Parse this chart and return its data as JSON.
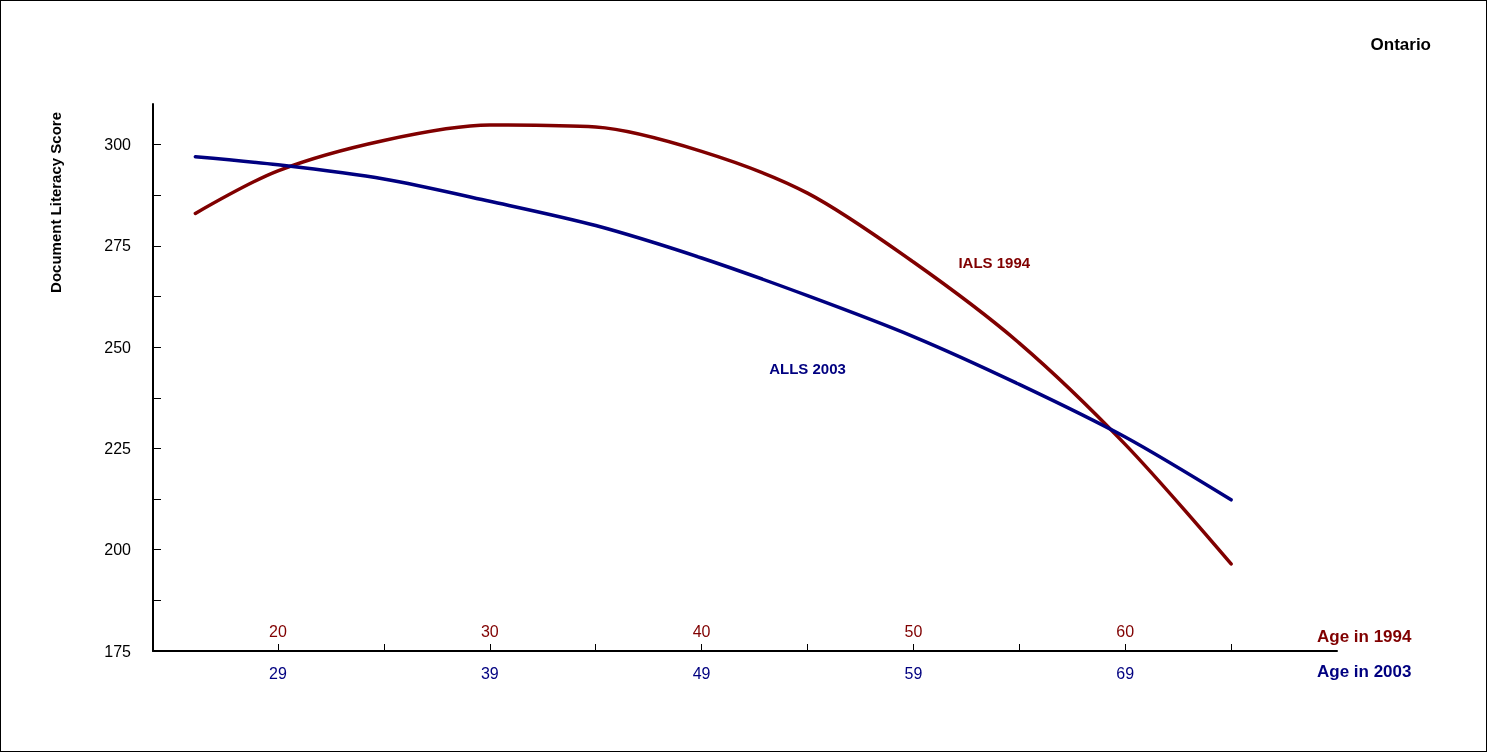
{
  "chart_data": {
    "type": "line",
    "title": "Ontario",
    "ylabel": "Document Literacy Score",
    "xlabel": "Age in 1994",
    "x2label": "Age in 2003",
    "xlim": [
      14.1,
      70
    ],
    "xticks": [
      20,
      {
        "value": 25,
        "label": null
      },
      30,
      {
        "value": 35,
        "label": null
      },
      40,
      {
        "value": 45,
        "label": null
      },
      50,
      {
        "value": 55,
        "label": null
      },
      60,
      {
        "value": 65,
        "label": null
      }
    ],
    "x2lim": [
      23.1,
      79
    ],
    "x2ticks": [
      29,
      39,
      49,
      59,
      69
    ],
    "ylim": [
      175,
      310
    ],
    "yticks": [
      175,
      {
        "value": 187.5,
        "label": null
      },
      200,
      {
        "value": 212.5,
        "label": null
      },
      225,
      {
        "value": 237.5,
        "label": null
      },
      250,
      {
        "value": 262.5,
        "label": null
      },
      275,
      {
        "value": 287.5,
        "label": null
      },
      300
    ],
    "grid": false,
    "legend": false,
    "marker": "none",
    "line_style": "solid",
    "series": [
      {
        "name": "IALS 1994",
        "color": "#800000",
        "x": [
          16.1,
          20,
          25,
          30,
          35,
          40,
          45,
          50,
          55,
          60,
          65
        ],
        "values": [
          283,
          293.5,
          301,
          304.8,
          304.3,
          298.3,
          288,
          271,
          251,
          226,
          196.5
        ]
      },
      {
        "name": "ALLS 2003",
        "color": "#000080",
        "x": [
          16.1,
          20,
          25,
          30,
          35,
          40,
          45,
          50,
          55,
          60,
          65
        ],
        "values": [
          297,
          295,
          291.5,
          286,
          280,
          272,
          262.7,
          252.6,
          240.8,
          227.8,
          212.3
        ]
      }
    ]
  }
}
